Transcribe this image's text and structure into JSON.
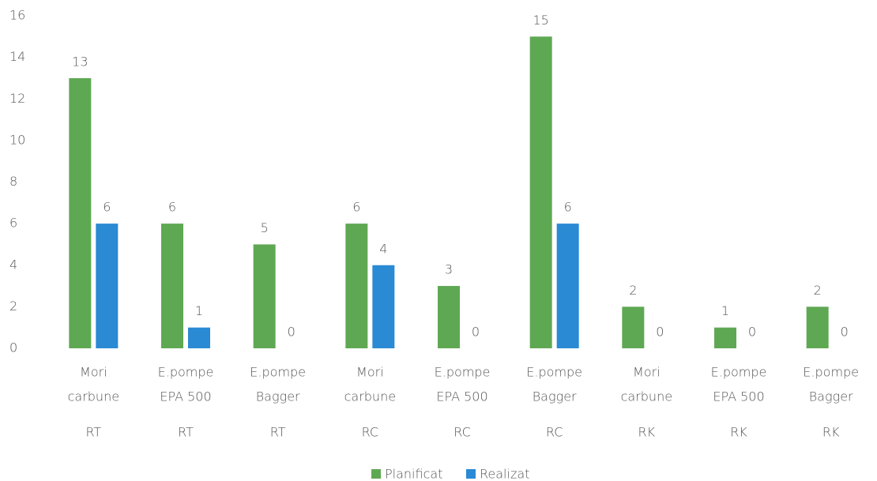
{
  "chart_data": {
    "type": "bar",
    "categories": [
      [
        "Mori",
        "carbune"
      ],
      [
        "E.pompe",
        "EPA 500"
      ],
      [
        "E.pompe",
        "Bagger"
      ],
      [
        "Mori",
        "carbune"
      ],
      [
        "E.pompe",
        "EPA 500"
      ],
      [
        "E.pompe",
        "Bagger"
      ],
      [
        "Mori",
        "carbune"
      ],
      [
        "E.pompe",
        "EPA 500"
      ],
      [
        "E.pompe",
        "Bagger"
      ]
    ],
    "groups": [
      "RT",
      "RT",
      "RT",
      "RC",
      "RC",
      "RC",
      "RK",
      "RK",
      "RK"
    ],
    "series": [
      {
        "name": "Planificat",
        "color": "#5fa853",
        "values": [
          13,
          6,
          5,
          6,
          3,
          15,
          2,
          1,
          2
        ]
      },
      {
        "name": "Realizat",
        "color": "#2a8ad4",
        "values": [
          6,
          1,
          0,
          4,
          0,
          6,
          0,
          0,
          0
        ]
      }
    ],
    "ylim": [
      0,
      16
    ],
    "yticks": [
      0,
      2,
      4,
      6,
      8,
      10,
      12,
      14,
      16
    ],
    "grid": false,
    "legend": "bottom"
  }
}
